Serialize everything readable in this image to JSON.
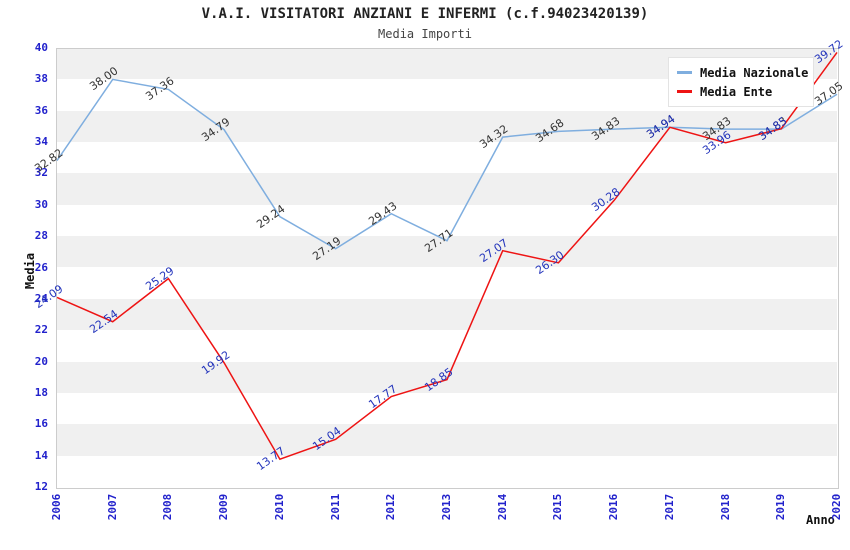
{
  "title": "V.A.I. VISITATORI ANZIANI E INFERMI (c.f.94023420139)",
  "subtitle": "Media Importi",
  "chart_data": {
    "type": "line",
    "x": [
      "2006",
      "2007",
      "2008",
      "2009",
      "2010",
      "2011",
      "2012",
      "2013",
      "2014",
      "2015",
      "2016",
      "2017",
      "2018",
      "2019",
      "2020"
    ],
    "series": [
      {
        "name": "Media Nazionale",
        "color": "#7FAEDF",
        "label_color": "#333333",
        "values": [
          32.82,
          38.0,
          37.36,
          34.79,
          29.24,
          27.19,
          29.43,
          27.71,
          34.32,
          34.68,
          34.83,
          34.94,
          34.83,
          34.83,
          37.05
        ]
      },
      {
        "name": "Media Ente",
        "color": "#EE1414",
        "label_color": "#2233BB",
        "values": [
          24.09,
          22.54,
          25.29,
          19.92,
          13.77,
          15.04,
          17.77,
          18.85,
          27.07,
          26.3,
          30.28,
          34.94,
          33.96,
          34.85,
          39.72
        ]
      }
    ],
    "xlabel": "Anno",
    "ylabel": "Media",
    "ylim": [
      12,
      40
    ],
    "ytick_step": 2,
    "legend_position": "top-right",
    "grid_bands": true,
    "band_color": "#F0F0F0",
    "plot_border_color": "#CCCCCC",
    "tick_color": "#2222CC"
  }
}
